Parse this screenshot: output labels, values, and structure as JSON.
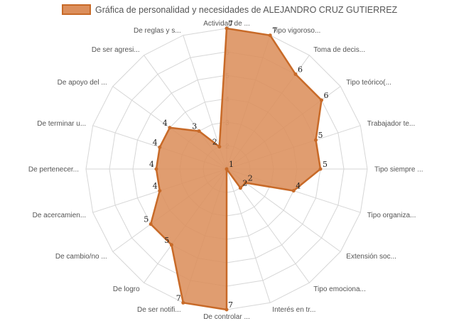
{
  "colors": {
    "fill": "#dc8f5c",
    "stroke": "#c86a28",
    "grid": "#d6d6d6"
  },
  "chart_data": {
    "type": "radar",
    "title": "",
    "legend": {
      "position": "top",
      "entries": [
        "Gráfica de personalidad y necesidades de ALEJANDRO CRUZ GUTIERREZ"
      ]
    },
    "scale": {
      "min": 1,
      "max": 7,
      "ticks": [
        1,
        2,
        3,
        4,
        5,
        6,
        7
      ]
    },
    "categories": [
      "Actividad de ...",
      "Tipo vigoroso...",
      "Toma de decis...",
      "Tipo teórico(...",
      "Trabajador te...",
      "Tipo siempre ...",
      "Tipo organiza...",
      "Extensión soc...",
      "Tipo emociona...",
      "Interés en tr...",
      "De controlar ...",
      "De ser notifi...",
      "De logro",
      "De cambio/no ...",
      "De acercamien...",
      "De pertenecer...",
      "De terminar u...",
      "De apoyo del ...",
      "De ser agresi...",
      "De reglas y s..."
    ],
    "series": [
      {
        "name": "Gráfica de personalidad y necesidades de ALEJANDRO CRUZ GUTIERREZ",
        "values": [
          7,
          7,
          6,
          6,
          5,
          5,
          4,
          2,
          2,
          1,
          7,
          7,
          5,
          5,
          4,
          4,
          4,
          4,
          3,
          2
        ]
      }
    ]
  }
}
